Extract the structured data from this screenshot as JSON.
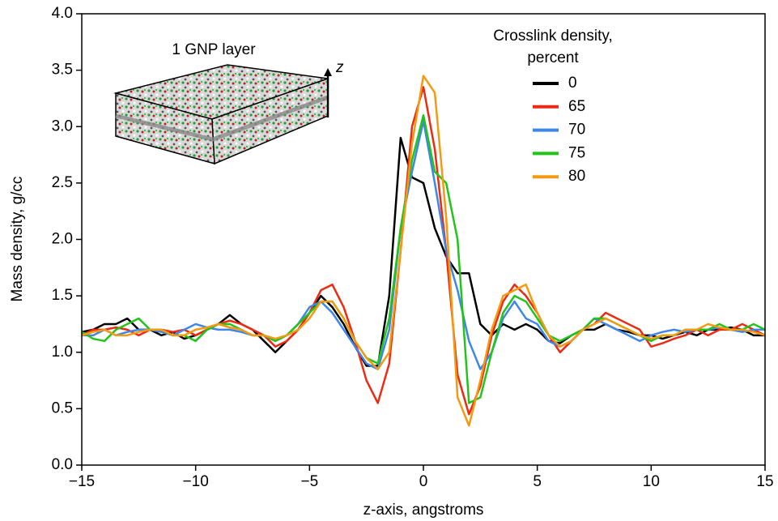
{
  "chart_data": {
    "type": "line",
    "xlabel": "z-axis, angstroms",
    "ylabel": "Mass density, g/cc",
    "legend_title": [
      "Crosslink density,",
      "percent"
    ],
    "inset_label": "1 GNP layer",
    "inset_axis_label": "z",
    "x": [
      -15,
      -14.5,
      -14,
      -13.5,
      -13,
      -12.5,
      -12,
      -11.5,
      -11,
      -10.5,
      -10,
      -9.5,
      -9,
      -8.5,
      -8,
      -7.5,
      -7,
      -6.5,
      -6,
      -5.5,
      -5,
      -4.5,
      -4,
      -3.5,
      -3,
      -2.5,
      -2,
      -1.5,
      -1,
      -0.5,
      0,
      0.5,
      1,
      1.5,
      2,
      2.5,
      3,
      3.5,
      4,
      4.5,
      5,
      5.5,
      6,
      6.5,
      7,
      7.5,
      8,
      8.5,
      9,
      9.5,
      10,
      10.5,
      11,
      11.5,
      12,
      12.5,
      13,
      13.5,
      14,
      14.5,
      15
    ],
    "series": [
      {
        "name": "0",
        "color": "#000000",
        "values": [
          1.18,
          1.2,
          1.25,
          1.25,
          1.3,
          1.2,
          1.2,
          1.15,
          1.18,
          1.12,
          1.15,
          1.2,
          1.25,
          1.33,
          1.25,
          1.2,
          1.1,
          1.0,
          1.1,
          1.2,
          1.35,
          1.5,
          1.4,
          1.25,
          1.05,
          0.88,
          0.88,
          1.5,
          2.9,
          2.55,
          2.5,
          2.1,
          1.85,
          1.7,
          1.7,
          1.25,
          1.15,
          1.25,
          1.2,
          1.25,
          1.2,
          1.1,
          1.08,
          1.15,
          1.2,
          1.2,
          1.25,
          1.2,
          1.18,
          1.15,
          1.15,
          1.12,
          1.15,
          1.18,
          1.15,
          1.2,
          1.2,
          1.22,
          1.2,
          1.15,
          1.15
        ]
      },
      {
        "name": "65",
        "color": "#ee2a12",
        "values": [
          1.15,
          1.2,
          1.2,
          1.22,
          1.2,
          1.15,
          1.2,
          1.2,
          1.18,
          1.2,
          1.15,
          1.2,
          1.25,
          1.28,
          1.25,
          1.2,
          1.15,
          1.05,
          1.1,
          1.2,
          1.35,
          1.55,
          1.6,
          1.4,
          1.1,
          0.75,
          0.55,
          0.9,
          1.9,
          3.0,
          3.35,
          2.8,
          1.9,
          0.8,
          0.45,
          0.7,
          1.15,
          1.45,
          1.6,
          1.5,
          1.35,
          1.15,
          1.0,
          1.1,
          1.2,
          1.25,
          1.35,
          1.3,
          1.25,
          1.2,
          1.05,
          1.08,
          1.12,
          1.15,
          1.2,
          1.15,
          1.2,
          1.2,
          1.25,
          1.2,
          1.15
        ]
      },
      {
        "name": "70",
        "color": "#3f86ea",
        "values": [
          1.15,
          1.15,
          1.2,
          1.15,
          1.18,
          1.2,
          1.2,
          1.18,
          1.15,
          1.2,
          1.25,
          1.22,
          1.2,
          1.2,
          1.18,
          1.15,
          1.15,
          1.1,
          1.15,
          1.25,
          1.4,
          1.45,
          1.35,
          1.2,
          1.05,
          0.9,
          0.85,
          1.2,
          2.1,
          2.6,
          3.05,
          2.5,
          1.9,
          1.55,
          1.1,
          0.85,
          1.0,
          1.3,
          1.45,
          1.3,
          1.25,
          1.1,
          1.05,
          1.1,
          1.2,
          1.3,
          1.25,
          1.2,
          1.15,
          1.1,
          1.15,
          1.18,
          1.2,
          1.18,
          1.2,
          1.2,
          1.22,
          1.2,
          1.18,
          1.2,
          1.2
        ]
      },
      {
        "name": "75",
        "color": "#22c41a",
        "values": [
          1.18,
          1.12,
          1.1,
          1.2,
          1.25,
          1.3,
          1.2,
          1.2,
          1.15,
          1.15,
          1.1,
          1.2,
          1.25,
          1.25,
          1.2,
          1.15,
          1.15,
          1.1,
          1.15,
          1.25,
          1.35,
          1.45,
          1.45,
          1.3,
          1.1,
          0.95,
          0.9,
          1.3,
          2.1,
          2.7,
          3.1,
          2.6,
          2.5,
          2.0,
          0.55,
          0.6,
          1.0,
          1.35,
          1.5,
          1.45,
          1.3,
          1.15,
          1.1,
          1.15,
          1.2,
          1.3,
          1.3,
          1.25,
          1.2,
          1.15,
          1.1,
          1.15,
          1.15,
          1.2,
          1.2,
          1.2,
          1.25,
          1.2,
          1.2,
          1.25,
          1.2
        ]
      },
      {
        "name": "80",
        "color": "#f39a12",
        "values": [
          1.15,
          1.18,
          1.2,
          1.15,
          1.15,
          1.18,
          1.2,
          1.2,
          1.15,
          1.15,
          1.2,
          1.22,
          1.25,
          1.22,
          1.2,
          1.15,
          1.15,
          1.12,
          1.15,
          1.2,
          1.3,
          1.45,
          1.45,
          1.3,
          1.1,
          0.95,
          0.85,
          1.0,
          1.9,
          2.85,
          3.45,
          3.3,
          2.2,
          0.6,
          0.35,
          0.75,
          1.2,
          1.5,
          1.55,
          1.6,
          1.35,
          1.15,
          1.05,
          1.1,
          1.2,
          1.25,
          1.3,
          1.25,
          1.2,
          1.15,
          1.12,
          1.15,
          1.15,
          1.2,
          1.2,
          1.25,
          1.22,
          1.2,
          1.2,
          1.18,
          1.15
        ]
      }
    ],
    "xlim": [
      -15,
      15
    ],
    "ylim": [
      0,
      4
    ],
    "xticks": [
      {
        "value": -15,
        "label": "−15"
      },
      {
        "value": -10,
        "label": "−10"
      },
      {
        "value": -5,
        "label": "−5"
      },
      0,
      5,
      10,
      15
    ],
    "yticks": [
      {
        "value": 0,
        "label": "0.0"
      },
      0.5,
      {
        "value": 1,
        "label": "1.0"
      },
      1.5,
      {
        "value": 2,
        "label": "2.0"
      },
      2.5,
      {
        "value": 3,
        "label": "3.0"
      },
      3.5,
      {
        "value": 4,
        "label": "4.0"
      }
    ],
    "grid": false,
    "legend": "upper right"
  }
}
